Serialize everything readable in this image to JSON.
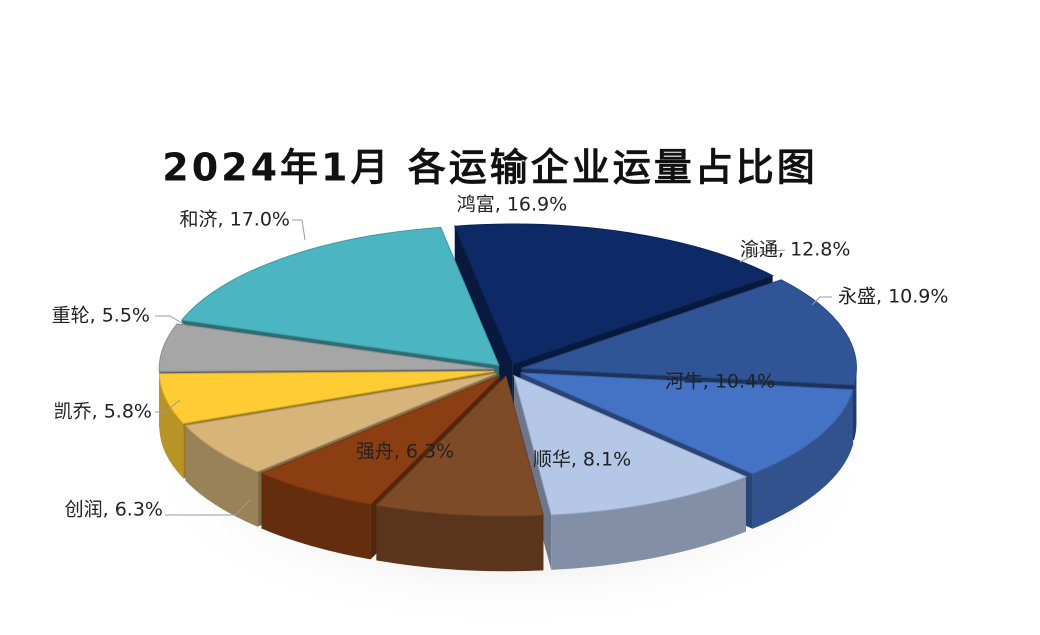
{
  "chart_data": {
    "type": "pie3d",
    "title": "2024年1月 各运输企业运量占比图",
    "values": [
      16.9,
      12.8,
      10.9,
      10.4,
      8.1,
      6.3,
      6.3,
      5.8,
      5.5,
      17.0
    ],
    "value_labels": [
      "鸿富, 16.9%",
      "渝通, 12.8%",
      "永盛, 10.9%",
      "河牛, 10.4%",
      "顺华, 8.1%",
      "强舟, 6.3%",
      "创润, 6.3%",
      "凯乔, 5.8%",
      "重轮, 5.5%",
      "和济, 17.0%"
    ],
    "colors": [
      "#0d2a66",
      "#2f5597",
      "#4472c4",
      "#b4c7e7",
      "#7f4a26",
      "#8b3e12",
      "#d6b47a",
      "#ffcc33",
      "#a6a6a6",
      "#4bb5c1"
    ]
  }
}
